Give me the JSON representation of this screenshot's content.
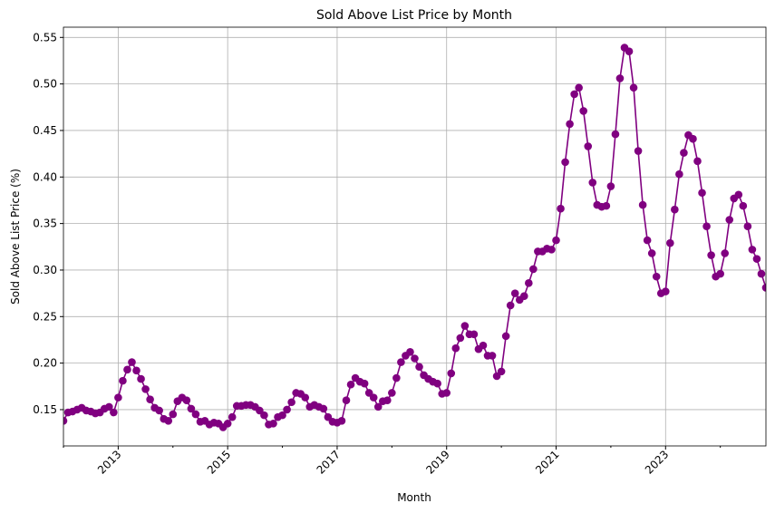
{
  "chart_data": {
    "type": "line",
    "title": "Sold Above List Price by Month",
    "x_label": "Month",
    "y_label": "Sold Above List Price (%)",
    "categories": [
      null,
      null,
      null,
      null,
      null,
      null,
      null,
      null,
      null,
      null,
      null,
      null,
      "2013",
      null,
      null,
      null,
      null,
      null,
      null,
      null,
      null,
      null,
      null,
      null,
      null,
      null,
      null,
      null,
      null,
      null,
      null,
      null,
      null,
      null,
      null,
      null,
      "2015",
      null,
      null,
      null,
      null,
      null,
      null,
      null,
      null,
      null,
      null,
      null,
      null,
      null,
      null,
      null,
      null,
      null,
      null,
      null,
      null,
      null,
      null,
      null,
      "2017",
      null,
      null,
      null,
      null,
      null,
      null,
      null,
      null,
      null,
      null,
      null,
      null,
      null,
      null,
      null,
      null,
      null,
      null,
      null,
      null,
      null,
      null,
      null,
      "2019",
      null,
      null,
      null,
      null,
      null,
      null,
      null,
      null,
      null,
      null,
      null,
      null,
      null,
      null,
      null,
      null,
      null,
      null,
      null,
      null,
      null,
      null,
      null,
      "2021",
      null,
      null,
      null,
      null,
      null,
      null,
      null,
      null,
      null,
      null,
      null,
      null,
      null,
      null,
      null,
      null,
      null,
      null,
      null,
      null,
      null,
      null,
      null,
      "2023",
      null,
      null,
      null,
      null,
      null,
      null,
      null,
      null,
      null,
      null,
      null,
      null,
      null,
      null,
      null,
      null,
      null,
      null,
      null,
      null,
      null,
      null
    ],
    "series": [
      {
        "name": "Sold Above List Price",
        "color": "#800080",
        "values": [
          0.138,
          0.147,
          0.148,
          0.15,
          0.152,
          0.149,
          0.148,
          0.146,
          0.147,
          0.151,
          0.153,
          0.147,
          0.163,
          0.181,
          0.193,
          0.201,
          0.192,
          0.183,
          0.172,
          0.161,
          0.152,
          0.149,
          0.14,
          0.138,
          0.145,
          0.159,
          0.163,
          0.16,
          0.151,
          0.145,
          0.137,
          0.138,
          0.134,
          0.136,
          0.135,
          0.131,
          0.135,
          0.142,
          0.154,
          0.154,
          0.155,
          0.155,
          0.153,
          0.149,
          0.144,
          0.134,
          0.135,
          0.142,
          0.144,
          0.15,
          0.158,
          0.168,
          0.167,
          0.163,
          0.153,
          0.155,
          0.153,
          0.151,
          0.142,
          0.137,
          0.136,
          0.138,
          0.16,
          0.177,
          0.184,
          0.18,
          0.178,
          0.168,
          0.163,
          0.153,
          0.159,
          0.16,
          0.168,
          0.184,
          0.201,
          0.208,
          0.212,
          0.205,
          0.196,
          0.187,
          0.183,
          0.18,
          0.178,
          0.167,
          0.168,
          0.189,
          0.216,
          0.227,
          0.24,
          0.231,
          0.231,
          0.215,
          0.219,
          0.208,
          0.208,
          0.186,
          0.191,
          0.229,
          0.262,
          0.275,
          0.268,
          0.272,
          0.286,
          0.301,
          0.32,
          0.32,
          0.323,
          0.322,
          0.332,
          0.366,
          0.416,
          0.457,
          0.489,
          0.496,
          0.471,
          0.433,
          0.394,
          0.37,
          0.368,
          0.369,
          0.39,
          0.446,
          0.506,
          0.539,
          0.535,
          0.496,
          0.428,
          0.37,
          0.332,
          0.318,
          0.293,
          0.275,
          0.277,
          0.329,
          0.365,
          0.403,
          0.426,
          0.445,
          0.441,
          0.417,
          0.383,
          0.347,
          0.316,
          0.293,
          0.296,
          0.318,
          0.354,
          0.377,
          0.381,
          0.369,
          0.347,
          0.322,
          0.312,
          0.296,
          0.281
        ]
      }
    ],
    "ylim": [
      0.111,
      0.561
    ],
    "yticks": [
      0.15,
      {
        "value": 0.2,
        "label": "0.20"
      },
      0.25,
      {
        "value": 0.3,
        "label": "0.30"
      },
      0.35,
      {
        "value": 0.4,
        "label": "0.40"
      },
      0.45,
      {
        "value": 0.5,
        "label": "0.50"
      },
      0.55
    ],
    "grid": true
  }
}
